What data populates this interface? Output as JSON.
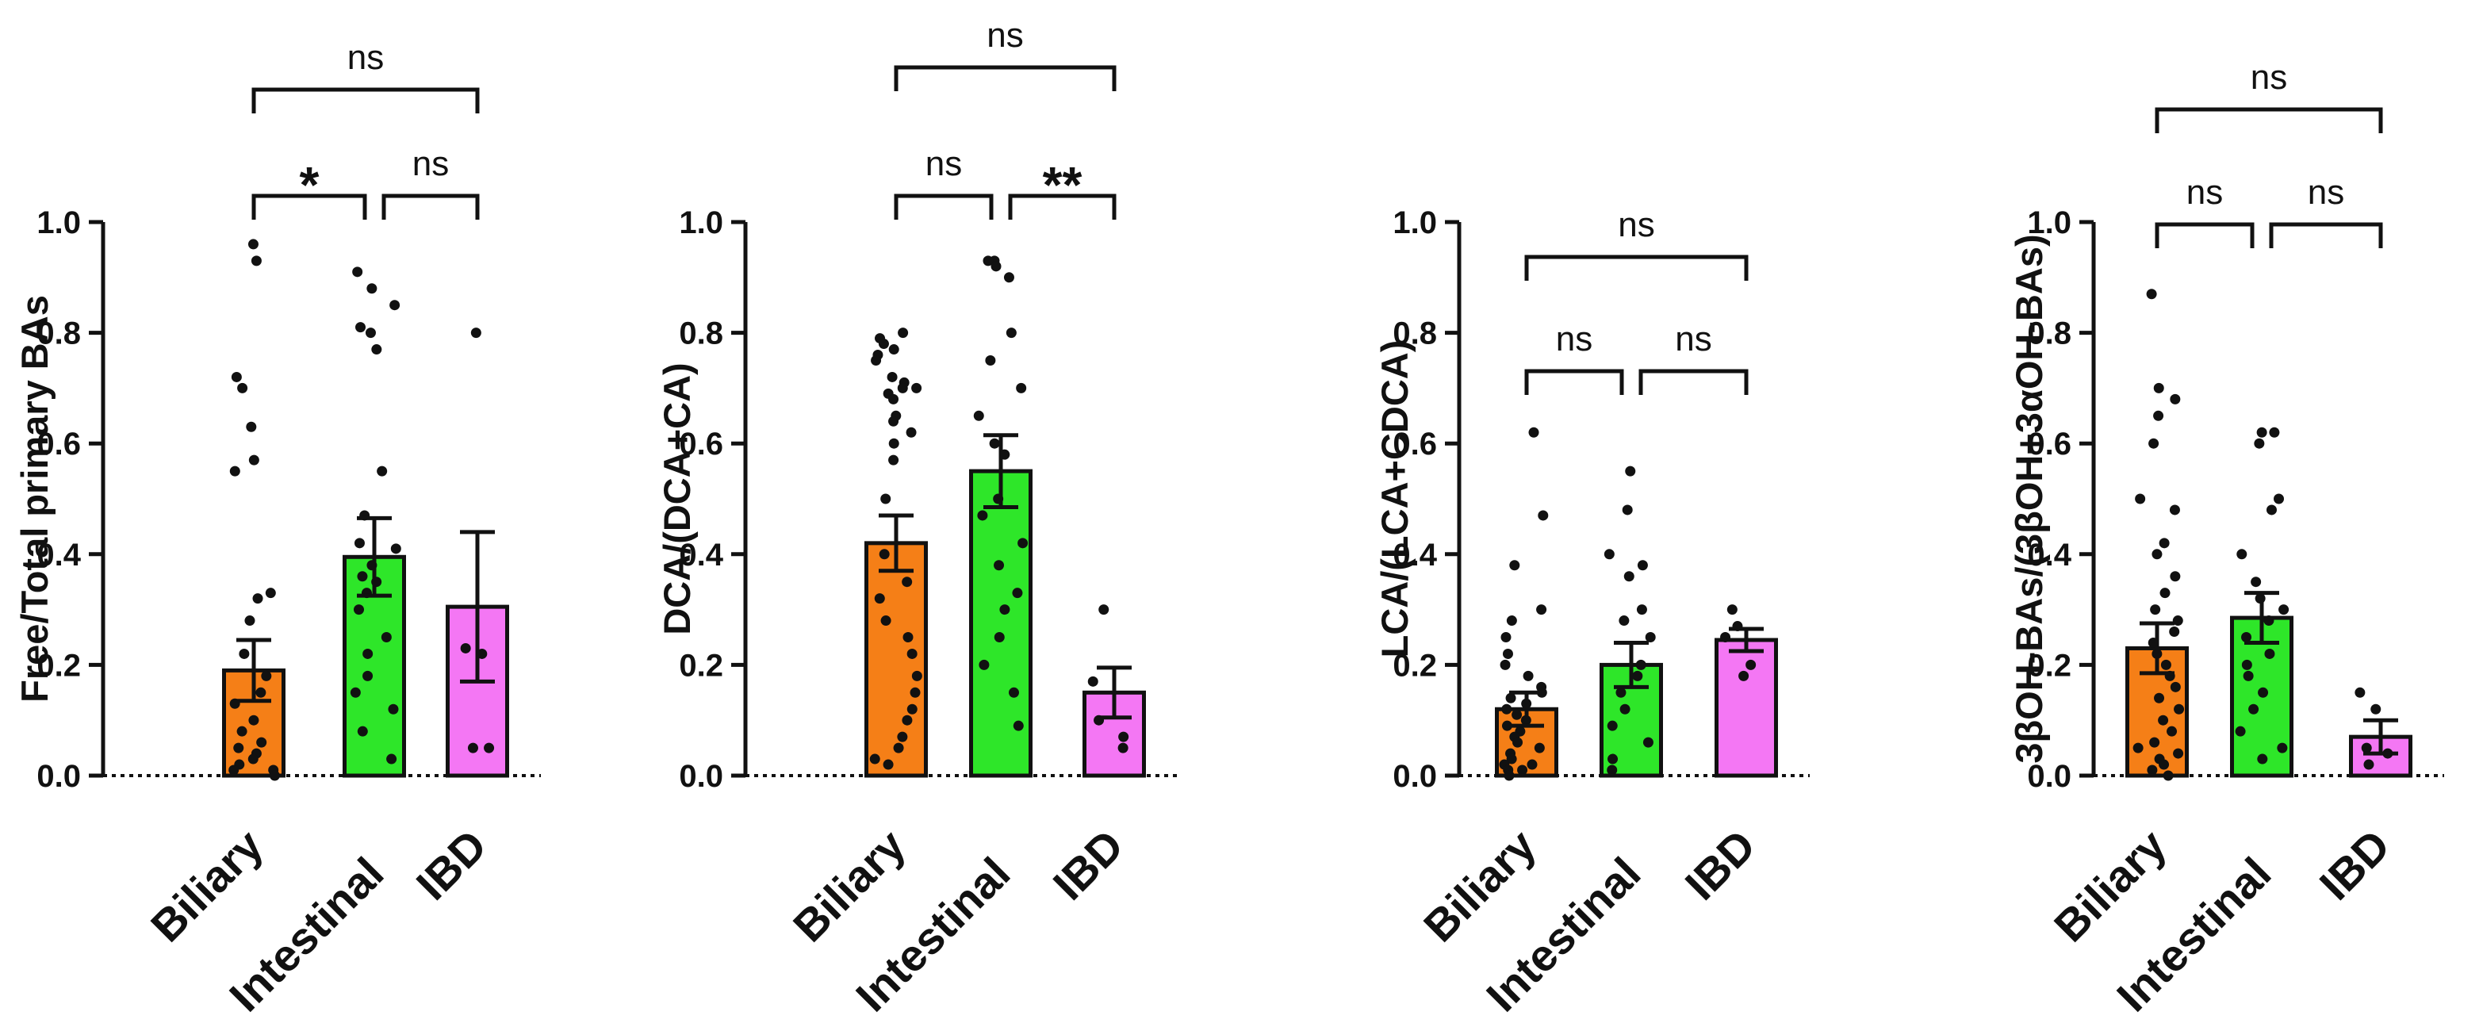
{
  "colors": {
    "Biliary": "#f57f17",
    "Intestinal": "#2ee629",
    "IBD": "#f477f4",
    "ink": "#111111"
  },
  "chart_data": [
    {
      "type": "bar",
      "title": "",
      "ylabel": "Free/Total primary BAs",
      "xlabel": "",
      "categories": [
        "Biliary",
        "Intestinal",
        "IBD"
      ],
      "values": [
        0.19,
        0.395,
        0.305
      ],
      "sem": [
        0.055,
        0.07,
        0.135
      ],
      "ylim": [
        0,
        1.0
      ],
      "yticks": [
        0.0,
        0.2,
        0.4,
        0.6,
        0.8,
        1.0
      ],
      "ytick_labels": [
        "0.0",
        "0.2",
        "0.4",
        "0.6",
        "0.8",
        "1.0"
      ],
      "points": [
        [
          0.96,
          0.93,
          0.72,
          0.7,
          0.63,
          0.57,
          0.55,
          0.33,
          0.32,
          0.28,
          0.22,
          0.18,
          0.15,
          0.13,
          0.1,
          0.08,
          0.06,
          0.05,
          0.04,
          0.03,
          0.02,
          0.01,
          0.01,
          0.0
        ],
        [
          0.91,
          0.88,
          0.85,
          0.81,
          0.8,
          0.77,
          0.55,
          0.47,
          0.42,
          0.41,
          0.38,
          0.36,
          0.35,
          0.33,
          0.3,
          0.25,
          0.22,
          0.18,
          0.15,
          0.12,
          0.08,
          0.03
        ],
        [
          0.8,
          0.23,
          0.22,
          0.05,
          0.05
        ]
      ],
      "comparisons": [
        {
          "from": 0,
          "to": 2,
          "label": "ns",
          "level": 2
        },
        {
          "from": 0,
          "to": 1,
          "label": "*",
          "level": 1
        },
        {
          "from": 1,
          "to": 2,
          "label": "ns",
          "level": 1
        }
      ]
    },
    {
      "type": "bar",
      "title": "",
      "ylabel": "DCA/(DCA+CA)",
      "xlabel": "",
      "categories": [
        "Biliary",
        "Intestinal",
        "IBD"
      ],
      "values": [
        0.42,
        0.55,
        0.15
      ],
      "sem": [
        0.05,
        0.065,
        0.045
      ],
      "ylim": [
        0,
        1.0
      ],
      "yticks": [
        0.0,
        0.2,
        0.4,
        0.6,
        0.8,
        1.0
      ],
      "ytick_labels": [
        "0.0",
        "0.2",
        "0.4",
        "0.6",
        "0.8",
        "1.0"
      ],
      "points": [
        [
          0.8,
          0.79,
          0.78,
          0.77,
          0.76,
          0.75,
          0.72,
          0.71,
          0.7,
          0.7,
          0.69,
          0.68,
          0.65,
          0.64,
          0.62,
          0.6,
          0.57,
          0.5,
          0.4,
          0.35,
          0.32,
          0.28,
          0.25,
          0.22,
          0.18,
          0.15,
          0.12,
          0.1,
          0.07,
          0.05,
          0.03,
          0.02
        ],
        [
          0.93,
          0.93,
          0.92,
          0.9,
          0.8,
          0.75,
          0.7,
          0.65,
          0.6,
          0.58,
          0.5,
          0.47,
          0.42,
          0.38,
          0.33,
          0.3,
          0.25,
          0.2,
          0.15,
          0.09
        ],
        [
          0.3,
          0.17,
          0.1,
          0.07,
          0.05
        ]
      ],
      "comparisons": [
        {
          "from": 0,
          "to": 2,
          "label": "ns",
          "level": 2
        },
        {
          "from": 0,
          "to": 1,
          "label": "ns",
          "level": 1
        },
        {
          "from": 1,
          "to": 2,
          "label": "**",
          "level": 1
        }
      ]
    },
    {
      "type": "bar",
      "title": "",
      "ylabel": "LCA/(LCA+CDCA)",
      "xlabel": "",
      "categories": [
        "Biliary",
        "Intestinal",
        "IBD"
      ],
      "values": [
        0.12,
        0.2,
        0.245
      ],
      "sem": [
        0.03,
        0.04,
        0.02
      ],
      "ylim": [
        0,
        1.0
      ],
      "yticks": [
        0.0,
        0.2,
        0.4,
        0.6,
        0.8,
        1.0
      ],
      "ytick_labels": [
        "0.0",
        "0.2",
        "0.4",
        "0.6",
        "0.8",
        "1.0"
      ],
      "points": [
        [
          0.62,
          0.47,
          0.38,
          0.3,
          0.28,
          0.25,
          0.22,
          0.2,
          0.18,
          0.16,
          0.15,
          0.14,
          0.13,
          0.12,
          0.11,
          0.1,
          0.09,
          0.08,
          0.07,
          0.06,
          0.05,
          0.04,
          0.03,
          0.02,
          0.02,
          0.01,
          0.01,
          0.0
        ],
        [
          0.55,
          0.48,
          0.4,
          0.38,
          0.36,
          0.3,
          0.28,
          0.25,
          0.2,
          0.18,
          0.15,
          0.12,
          0.09,
          0.06,
          0.03,
          0.01
        ],
        [
          0.3,
          0.27,
          0.25,
          0.2,
          0.18
        ]
      ],
      "comparisons": [
        {
          "from": 0,
          "to": 2,
          "label": "ns",
          "level": 2
        },
        {
          "from": 0,
          "to": 1,
          "label": "ns",
          "level": 1
        },
        {
          "from": 1,
          "to": 2,
          "label": "ns",
          "level": 1
        }
      ]
    },
    {
      "type": "bar",
      "title": "",
      "ylabel": "3βOH-BAs/(3βOH+3αOH-BAs)",
      "xlabel": "",
      "categories": [
        "Biliary",
        "Intestinal",
        "IBD"
      ],
      "values": [
        0.23,
        0.285,
        0.07
      ],
      "sem": [
        0.045,
        0.045,
        0.03
      ],
      "ylim": [
        0,
        1.0
      ],
      "yticks": [
        0.0,
        0.2,
        0.4,
        0.6,
        0.8,
        1.0
      ],
      "ytick_labels": [
        "0.0",
        "0.2",
        "0.4",
        "0.6",
        "0.8",
        "1.0"
      ],
      "points": [
        [
          0.87,
          0.7,
          0.68,
          0.65,
          0.6,
          0.5,
          0.48,
          0.42,
          0.4,
          0.36,
          0.33,
          0.3,
          0.28,
          0.26,
          0.24,
          0.22,
          0.2,
          0.18,
          0.16,
          0.14,
          0.12,
          0.1,
          0.08,
          0.06,
          0.05,
          0.04,
          0.03,
          0.02,
          0.01,
          0.0
        ],
        [
          0.62,
          0.62,
          0.6,
          0.5,
          0.48,
          0.4,
          0.35,
          0.32,
          0.3,
          0.28,
          0.25,
          0.22,
          0.2,
          0.18,
          0.15,
          0.12,
          0.08,
          0.05,
          0.03
        ],
        [
          0.15,
          0.12,
          0.05,
          0.04,
          0.02
        ]
      ],
      "comparisons": [
        {
          "from": 0,
          "to": 2,
          "label": "ns",
          "level": 2
        },
        {
          "from": 0,
          "to": 1,
          "label": "ns",
          "level": 1
        },
        {
          "from": 1,
          "to": 2,
          "label": "ns",
          "level": 1
        }
      ]
    }
  ]
}
